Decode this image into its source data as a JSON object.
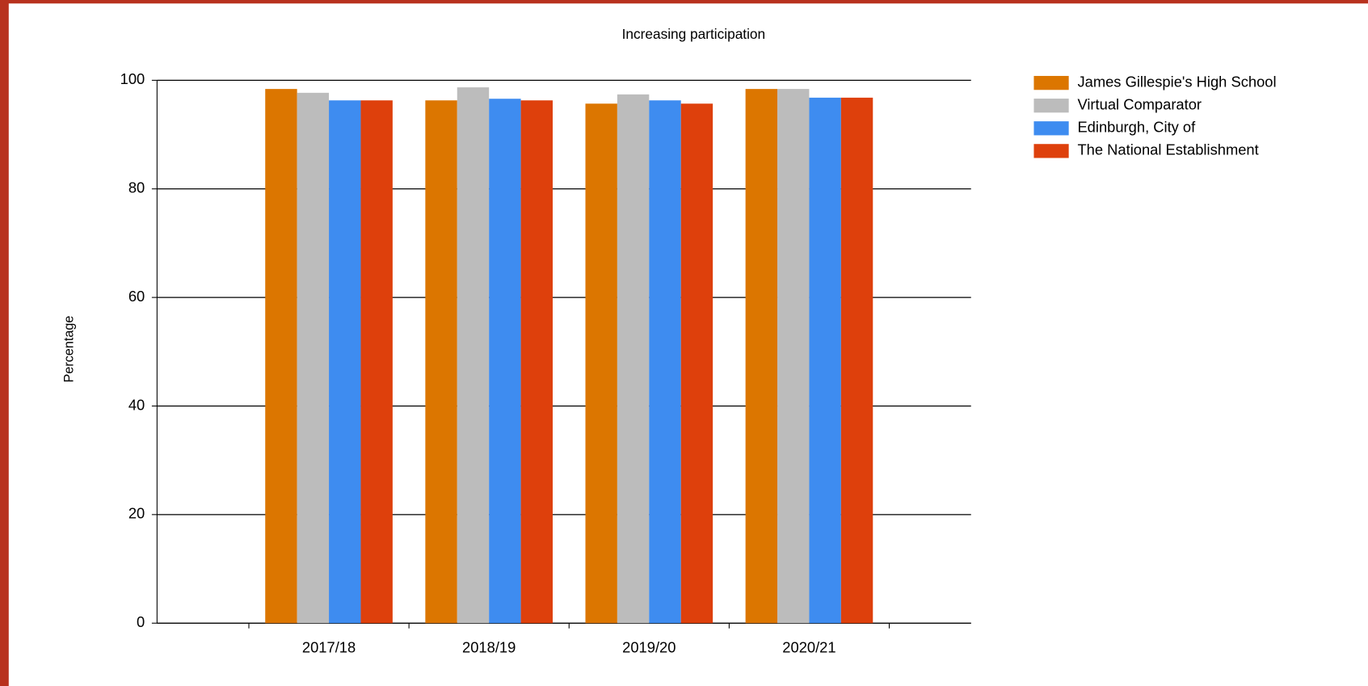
{
  "chart_data": {
    "type": "bar",
    "title": "Increasing participation",
    "y_label": "Percentage",
    "categories": [
      "2017/18",
      "2018/19",
      "2019/20",
      "2020/21"
    ],
    "series": [
      {
        "name": "James Gillespie's High School",
        "color": "#dc7600",
        "values": [
          98.4,
          96.3,
          95.7,
          98.4
        ]
      },
      {
        "name": "Virtual Comparator",
        "color": "#bcbcbc",
        "values": [
          97.7,
          98.7,
          97.4,
          98.4
        ]
      },
      {
        "name": "Edinburgh, City of",
        "color": "#3e8cf0",
        "values": [
          96.3,
          96.6,
          96.3,
          96.8
        ]
      },
      {
        "name": "The National Establishment",
        "color": "#de400c",
        "values": [
          96.3,
          96.3,
          95.7,
          96.8
        ]
      }
    ],
    "ylim": [
      0,
      100
    ],
    "yticks": [
      0,
      20,
      40,
      60,
      80,
      100
    ],
    "grid": true,
    "legend": "right"
  }
}
